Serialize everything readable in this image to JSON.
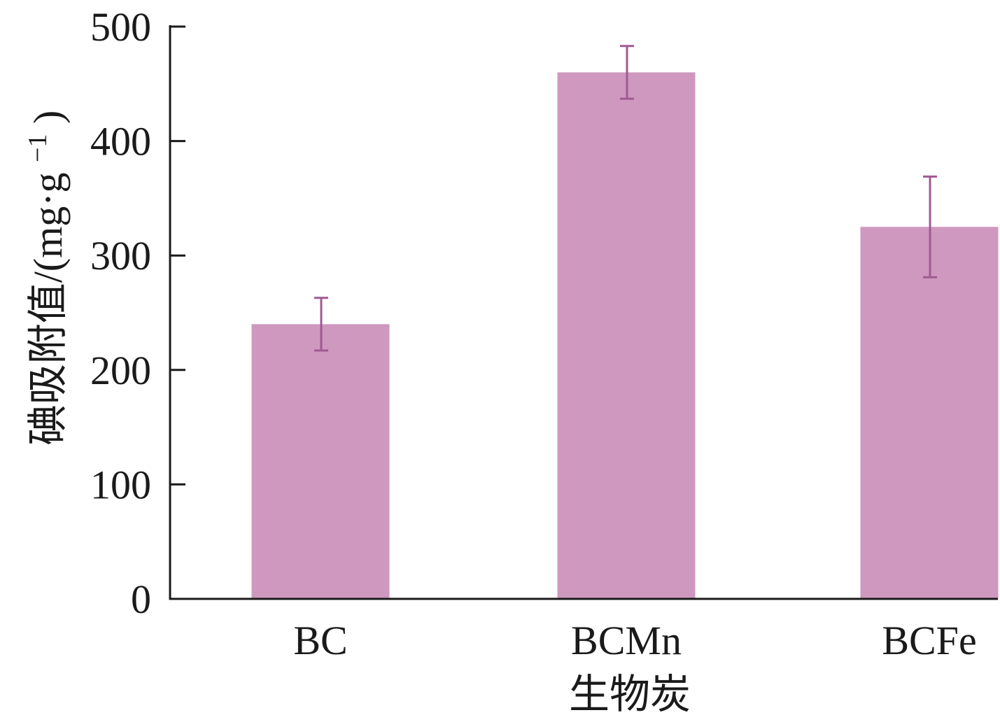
{
  "chart_data": {
    "type": "bar",
    "categories": [
      "BC",
      "BCMn",
      "BCFe"
    ],
    "series": [
      {
        "values": [
          240,
          460,
          325
        ],
        "errors": [
          23,
          23,
          44
        ]
      }
    ],
    "xlabel": "生物炭",
    "ylabel": "碘吸附值/(mg·g",
    "ylabel_sup": "−1",
    "ylabel_suffix": ")",
    "ylim": [
      0,
      500
    ],
    "yticks": [
      0,
      100,
      200,
      300,
      400,
      500
    ],
    "grid": false,
    "legend": "none",
    "colors": {
      "bar": "#cf98bf",
      "error_bar": "#a05a92",
      "axis": "#1a1a1a"
    }
  }
}
